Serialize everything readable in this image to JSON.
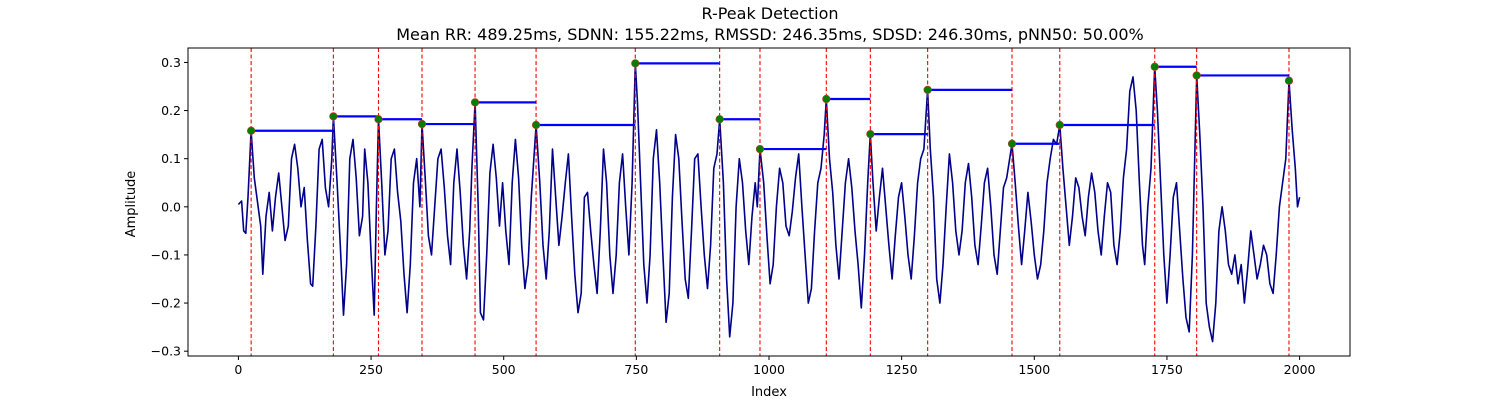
{
  "chart_data": {
    "type": "line",
    "title": "R-Peak Detection",
    "subtitle": "Mean RR: 489.25ms, SDNN: 155.22ms, RMSSD: 246.35ms, SDSD: 246.30ms, pNN50: 50.00%",
    "xlabel": "Index",
    "ylabel": "Amplitude",
    "xlim": [
      -95,
      2095
    ],
    "ylim": [
      -0.31,
      0.33
    ],
    "xticks": [
      0,
      250,
      500,
      750,
      1000,
      1250,
      1500,
      1750,
      2000
    ],
    "yticks": [
      -0.3,
      -0.2,
      -0.1,
      0.0,
      0.1,
      0.2,
      0.3
    ],
    "xtick_labels": [
      "0",
      "250",
      "500",
      "750",
      "1000",
      "1250",
      "1500",
      "1750",
      "2000"
    ],
    "ytick_labels": [
      "−0.3",
      "−0.2",
      "−0.1",
      "0.0",
      "0.1",
      "0.2",
      "0.3"
    ],
    "grid": false,
    "colors": {
      "signal": "#00008b",
      "peak_line": "#ff0000",
      "peak_marker": "#008000",
      "rr_segment": "#0000ff"
    },
    "peaks": [
      {
        "x": 24,
        "y": 0.158
      },
      {
        "x": 179,
        "y": 0.188
      },
      {
        "x": 264,
        "y": 0.182
      },
      {
        "x": 346,
        "y": 0.172
      },
      {
        "x": 446,
        "y": 0.217
      },
      {
        "x": 561,
        "y": 0.17
      },
      {
        "x": 748,
        "y": 0.298
      },
      {
        "x": 907,
        "y": 0.182
      },
      {
        "x": 983,
        "y": 0.12
      },
      {
        "x": 1108,
        "y": 0.224
      },
      {
        "x": 1191,
        "y": 0.151
      },
      {
        "x": 1299,
        "y": 0.243
      },
      {
        "x": 1458,
        "y": 0.131
      },
      {
        "x": 1548,
        "y": 0.17
      },
      {
        "x": 1727,
        "y": 0.291
      },
      {
        "x": 1806,
        "y": 0.273
      },
      {
        "x": 1980,
        "y": 0.262
      }
    ],
    "signal": [
      [
        0,
        0.005
      ],
      [
        6,
        0.012
      ],
      [
        10,
        -0.05
      ],
      [
        14,
        -0.055
      ],
      [
        18,
        0.02
      ],
      [
        24,
        0.158
      ],
      [
        30,
        0.06
      ],
      [
        36,
        0.01
      ],
      [
        42,
        -0.04
      ],
      [
        46,
        -0.14
      ],
      [
        52,
        -0.02
      ],
      [
        58,
        0.03
      ],
      [
        64,
        -0.05
      ],
      [
        70,
        0.02
      ],
      [
        76,
        0.07
      ],
      [
        82,
        0.0
      ],
      [
        88,
        -0.07
      ],
      [
        94,
        -0.04
      ],
      [
        100,
        0.1
      ],
      [
        106,
        0.13
      ],
      [
        112,
        0.08
      ],
      [
        118,
        0.0
      ],
      [
        124,
        0.04
      ],
      [
        130,
        -0.07
      ],
      [
        136,
        -0.16
      ],
      [
        140,
        -0.165
      ],
      [
        146,
        -0.04
      ],
      [
        152,
        0.12
      ],
      [
        158,
        0.14
      ],
      [
        164,
        0.04
      ],
      [
        170,
        0.0
      ],
      [
        176,
        0.1
      ],
      [
        179,
        0.188
      ],
      [
        186,
        0.05
      ],
      [
        192,
        -0.08
      ],
      [
        198,
        -0.225
      ],
      [
        204,
        -0.12
      ],
      [
        210,
        0.1
      ],
      [
        216,
        0.14
      ],
      [
        222,
        0.06
      ],
      [
        228,
        -0.06
      ],
      [
        234,
        -0.02
      ],
      [
        238,
        0.12
      ],
      [
        244,
        0.05
      ],
      [
        250,
        -0.1
      ],
      [
        256,
        -0.225
      ],
      [
        260,
        0.0
      ],
      [
        264,
        0.182
      ],
      [
        270,
        0.05
      ],
      [
        276,
        -0.1
      ],
      [
        282,
        -0.05
      ],
      [
        288,
        0.1
      ],
      [
        294,
        0.12
      ],
      [
        300,
        0.03
      ],
      [
        306,
        -0.03
      ],
      [
        312,
        -0.14
      ],
      [
        318,
        -0.22
      ],
      [
        324,
        -0.12
      ],
      [
        330,
        0.05
      ],
      [
        336,
        0.1
      ],
      [
        342,
        0.0
      ],
      [
        346,
        0.172
      ],
      [
        352,
        0.06
      ],
      [
        358,
        -0.06
      ],
      [
        364,
        -0.1
      ],
      [
        370,
        0.0
      ],
      [
        376,
        0.1
      ],
      [
        382,
        0.12
      ],
      [
        388,
        0.04
      ],
      [
        394,
        -0.06
      ],
      [
        400,
        -0.12
      ],
      [
        406,
        0.05
      ],
      [
        412,
        0.12
      ],
      [
        418,
        0.03
      ],
      [
        424,
        -0.08
      ],
      [
        430,
        -0.15
      ],
      [
        436,
        -0.05
      ],
      [
        440,
        0.08
      ],
      [
        446,
        0.217
      ],
      [
        452,
        0.0
      ],
      [
        456,
        -0.22
      ],
      [
        462,
        -0.235
      ],
      [
        468,
        -0.1
      ],
      [
        474,
        0.07
      ],
      [
        480,
        0.13
      ],
      [
        486,
        0.06
      ],
      [
        492,
        -0.04
      ],
      [
        498,
        0.05
      ],
      [
        504,
        -0.05
      ],
      [
        510,
        -0.12
      ],
      [
        516,
        0.05
      ],
      [
        522,
        0.14
      ],
      [
        528,
        0.06
      ],
      [
        534,
        -0.08
      ],
      [
        540,
        -0.17
      ],
      [
        546,
        -0.12
      ],
      [
        552,
        0.02
      ],
      [
        561,
        0.17
      ],
      [
        568,
        0.05
      ],
      [
        574,
        -0.08
      ],
      [
        580,
        -0.15
      ],
      [
        586,
        -0.05
      ],
      [
        592,
        0.12
      ],
      [
        598,
        0.02
      ],
      [
        604,
        -0.08
      ],
      [
        610,
        -0.02
      ],
      [
        616,
        0.05
      ],
      [
        622,
        0.11
      ],
      [
        628,
        -0.02
      ],
      [
        634,
        -0.14
      ],
      [
        640,
        -0.22
      ],
      [
        646,
        -0.18
      ],
      [
        652,
        0.02
      ],
      [
        658,
        0.03
      ],
      [
        664,
        -0.05
      ],
      [
        670,
        -0.12
      ],
      [
        676,
        -0.18
      ],
      [
        682,
        -0.05
      ],
      [
        688,
        0.12
      ],
      [
        694,
        0.05
      ],
      [
        700,
        -0.1
      ],
      [
        706,
        -0.18
      ],
      [
        712,
        -0.1
      ],
      [
        718,
        0.05
      ],
      [
        724,
        0.11
      ],
      [
        730,
        0.0
      ],
      [
        736,
        -0.1
      ],
      [
        742,
        0.05
      ],
      [
        748,
        0.298
      ],
      [
        752,
        0.22
      ],
      [
        758,
        0.05
      ],
      [
        764,
        -0.12
      ],
      [
        770,
        -0.2
      ],
      [
        776,
        -0.1
      ],
      [
        782,
        0.1
      ],
      [
        788,
        0.16
      ],
      [
        794,
        0.05
      ],
      [
        800,
        -0.1
      ],
      [
        806,
        -0.24
      ],
      [
        812,
        -0.18
      ],
      [
        818,
        0.02
      ],
      [
        824,
        0.15
      ],
      [
        830,
        0.1
      ],
      [
        836,
        -0.03
      ],
      [
        842,
        -0.15
      ],
      [
        848,
        -0.19
      ],
      [
        854,
        -0.05
      ],
      [
        860,
        0.1
      ],
      [
        866,
        0.11
      ],
      [
        872,
        0.0
      ],
      [
        878,
        -0.1
      ],
      [
        884,
        -0.17
      ],
      [
        890,
        -0.08
      ],
      [
        896,
        0.08
      ],
      [
        902,
        0.11
      ],
      [
        907,
        0.182
      ],
      [
        914,
        0.05
      ],
      [
        920,
        -0.15
      ],
      [
        926,
        -0.27
      ],
      [
        932,
        -0.2
      ],
      [
        938,
        0.0
      ],
      [
        944,
        0.1
      ],
      [
        950,
        0.05
      ],
      [
        956,
        -0.05
      ],
      [
        962,
        -0.12
      ],
      [
        968,
        -0.02
      ],
      [
        974,
        0.05
      ],
      [
        978,
        0.0
      ],
      [
        983,
        0.12
      ],
      [
        990,
        0.05
      ],
      [
        996,
        -0.06
      ],
      [
        1002,
        -0.16
      ],
      [
        1008,
        -0.12
      ],
      [
        1014,
        0.0
      ],
      [
        1020,
        0.08
      ],
      [
        1026,
        0.05
      ],
      [
        1032,
        -0.04
      ],
      [
        1038,
        -0.06
      ],
      [
        1044,
        -0.01
      ],
      [
        1050,
        0.06
      ],
      [
        1056,
        0.11
      ],
      [
        1062,
        0.0
      ],
      [
        1068,
        -0.1
      ],
      [
        1074,
        -0.2
      ],
      [
        1080,
        -0.17
      ],
      [
        1086,
        -0.05
      ],
      [
        1092,
        0.05
      ],
      [
        1098,
        0.08
      ],
      [
        1104,
        0.15
      ],
      [
        1108,
        0.224
      ],
      [
        1114,
        0.1
      ],
      [
        1120,
        0.03
      ],
      [
        1126,
        -0.08
      ],
      [
        1132,
        -0.15
      ],
      [
        1138,
        -0.05
      ],
      [
        1144,
        0.05
      ],
      [
        1150,
        0.1
      ],
      [
        1156,
        0.04
      ],
      [
        1162,
        -0.05
      ],
      [
        1168,
        -0.12
      ],
      [
        1174,
        -0.21
      ],
      [
        1180,
        -0.1
      ],
      [
        1186,
        0.05
      ],
      [
        1191,
        0.151
      ],
      [
        1196,
        0.05
      ],
      [
        1202,
        -0.05
      ],
      [
        1208,
        0.02
      ],
      [
        1214,
        0.08
      ],
      [
        1220,
        0.0
      ],
      [
        1226,
        -0.08
      ],
      [
        1232,
        -0.15
      ],
      [
        1238,
        -0.06
      ],
      [
        1244,
        0.02
      ],
      [
        1250,
        0.05
      ],
      [
        1256,
        -0.02
      ],
      [
        1262,
        -0.1
      ],
      [
        1268,
        -0.15
      ],
      [
        1274,
        -0.06
      ],
      [
        1280,
        0.05
      ],
      [
        1286,
        0.1
      ],
      [
        1292,
        0.12
      ],
      [
        1299,
        0.243
      ],
      [
        1304,
        0.12
      ],
      [
        1310,
        0.02
      ],
      [
        1316,
        -0.15
      ],
      [
        1322,
        -0.2
      ],
      [
        1328,
        -0.12
      ],
      [
        1334,
        0.0
      ],
      [
        1340,
        0.11
      ],
      [
        1346,
        0.05
      ],
      [
        1352,
        -0.05
      ],
      [
        1358,
        -0.1
      ],
      [
        1364,
        -0.05
      ],
      [
        1370,
        0.05
      ],
      [
        1376,
        0.09
      ],
      [
        1382,
        0.02
      ],
      [
        1388,
        -0.08
      ],
      [
        1394,
        -0.12
      ],
      [
        1400,
        -0.04
      ],
      [
        1406,
        0.05
      ],
      [
        1412,
        0.08
      ],
      [
        1418,
        0.0
      ],
      [
        1424,
        -0.1
      ],
      [
        1430,
        -0.14
      ],
      [
        1436,
        -0.05
      ],
      [
        1442,
        0.04
      ],
      [
        1448,
        0.06
      ],
      [
        1458,
        0.131
      ],
      [
        1464,
        0.05
      ],
      [
        1470,
        -0.04
      ],
      [
        1476,
        -0.12
      ],
      [
        1482,
        -0.05
      ],
      [
        1488,
        0.03
      ],
      [
        1494,
        -0.03
      ],
      [
        1500,
        -0.1
      ],
      [
        1506,
        -0.15
      ],
      [
        1512,
        -0.12
      ],
      [
        1518,
        -0.05
      ],
      [
        1524,
        0.05
      ],
      [
        1530,
        0.1
      ],
      [
        1536,
        0.14
      ],
      [
        1542,
        0.13
      ],
      [
        1548,
        0.17
      ],
      [
        1554,
        0.08
      ],
      [
        1560,
        0.0
      ],
      [
        1566,
        -0.08
      ],
      [
        1572,
        -0.02
      ],
      [
        1578,
        0.06
      ],
      [
        1584,
        0.04
      ],
      [
        1590,
        -0.02
      ],
      [
        1596,
        -0.06
      ],
      [
        1602,
        0.02
      ],
      [
        1608,
        0.07
      ],
      [
        1614,
        0.03
      ],
      [
        1620,
        -0.05
      ],
      [
        1626,
        -0.1
      ],
      [
        1632,
        -0.02
      ],
      [
        1638,
        0.05
      ],
      [
        1644,
        0.03
      ],
      [
        1650,
        -0.08
      ],
      [
        1656,
        -0.12
      ],
      [
        1662,
        -0.05
      ],
      [
        1668,
        0.06
      ],
      [
        1674,
        0.12
      ],
      [
        1680,
        0.24
      ],
      [
        1686,
        0.27
      ],
      [
        1692,
        0.2
      ],
      [
        1698,
        0.05
      ],
      [
        1704,
        -0.08
      ],
      [
        1708,
        -0.12
      ],
      [
        1714,
        0.0
      ],
      [
        1720,
        0.08
      ],
      [
        1727,
        0.291
      ],
      [
        1732,
        0.2
      ],
      [
        1738,
        0.05
      ],
      [
        1744,
        -0.1
      ],
      [
        1750,
        -0.2
      ],
      [
        1756,
        -0.1
      ],
      [
        1762,
        0.02
      ],
      [
        1768,
        0.05
      ],
      [
        1774,
        -0.05
      ],
      [
        1780,
        -0.15
      ],
      [
        1786,
        -0.23
      ],
      [
        1792,
        -0.26
      ],
      [
        1798,
        -0.1
      ],
      [
        1806,
        0.273
      ],
      [
        1812,
        0.15
      ],
      [
        1818,
        0.0
      ],
      [
        1824,
        -0.2
      ],
      [
        1830,
        -0.25
      ],
      [
        1836,
        -0.28
      ],
      [
        1842,
        -0.2
      ],
      [
        1848,
        -0.05
      ],
      [
        1854,
        0.0
      ],
      [
        1860,
        -0.05
      ],
      [
        1866,
        -0.12
      ],
      [
        1872,
        -0.14
      ],
      [
        1878,
        -0.1
      ],
      [
        1884,
        -0.16
      ],
      [
        1890,
        -0.12
      ],
      [
        1896,
        -0.2
      ],
      [
        1902,
        -0.13
      ],
      [
        1908,
        -0.05
      ],
      [
        1914,
        -0.1
      ],
      [
        1920,
        -0.15
      ],
      [
        1926,
        -0.12
      ],
      [
        1932,
        -0.08
      ],
      [
        1938,
        -0.1
      ],
      [
        1944,
        -0.16
      ],
      [
        1950,
        -0.18
      ],
      [
        1956,
        -0.1
      ],
      [
        1962,
        0.0
      ],
      [
        1968,
        0.05
      ],
      [
        1974,
        0.1
      ],
      [
        1980,
        0.262
      ],
      [
        1986,
        0.16
      ],
      [
        1992,
        0.08
      ],
      [
        1996,
        0.0
      ],
      [
        2000,
        0.02
      ]
    ]
  }
}
